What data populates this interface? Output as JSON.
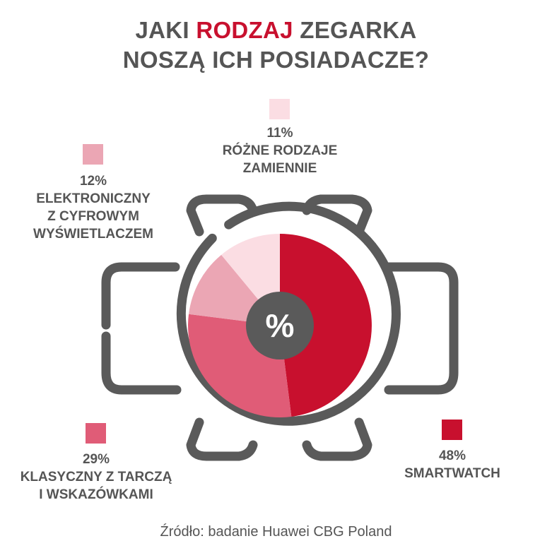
{
  "title": {
    "line1_a": "JAKI ",
    "line1_accent": "RODZAJ",
    "line1_b": " ZEGARKA",
    "line2": "NOSZĄ ICH POSIADACZE?"
  },
  "center_symbol": "%",
  "source": "Źródło: badanie Huawei CBG Poland",
  "colors": {
    "accent": "#c8102e",
    "watch_outline": "#5a5a5a"
  },
  "chart_data": {
    "type": "pie",
    "title": "JAKI RODZAJ ZEGARKA NOSZĄ ICH POSIADACZE?",
    "unit": "%",
    "slices": [
      {
        "label": "SMARTWATCH",
        "value": 48,
        "value_label": "48%",
        "lines": [
          "SMARTWATCH"
        ],
        "color": "#c8102e"
      },
      {
        "label": "KLASYCZNY Z TARCZĄ I WSKAZÓWKAMI",
        "value": 29,
        "value_label": "29%",
        "lines": [
          "KLASYCZNY Z TARCZĄ",
          "I WSKAZÓWKAMI"
        ],
        "color": "#e05c77"
      },
      {
        "label": "ELEKTRONICZNY Z CYFROWYM WYŚWIETLACZEM",
        "value": 12,
        "value_label": "12%",
        "lines": [
          "ELEKTRONICZNY",
          "Z CYFROWYM",
          "WYŚWIETLACZEM"
        ],
        "color": "#eba6b4"
      },
      {
        "label": "RÓŻNE RODZAJE ZAMIENNIE",
        "value": 11,
        "value_label": "11%",
        "lines": [
          "RÓŻNE RODZAJE",
          "ZAMIENNIE"
        ],
        "color": "#fbdde3"
      }
    ],
    "start": "12 o'clock",
    "direction": "clockwise"
  }
}
